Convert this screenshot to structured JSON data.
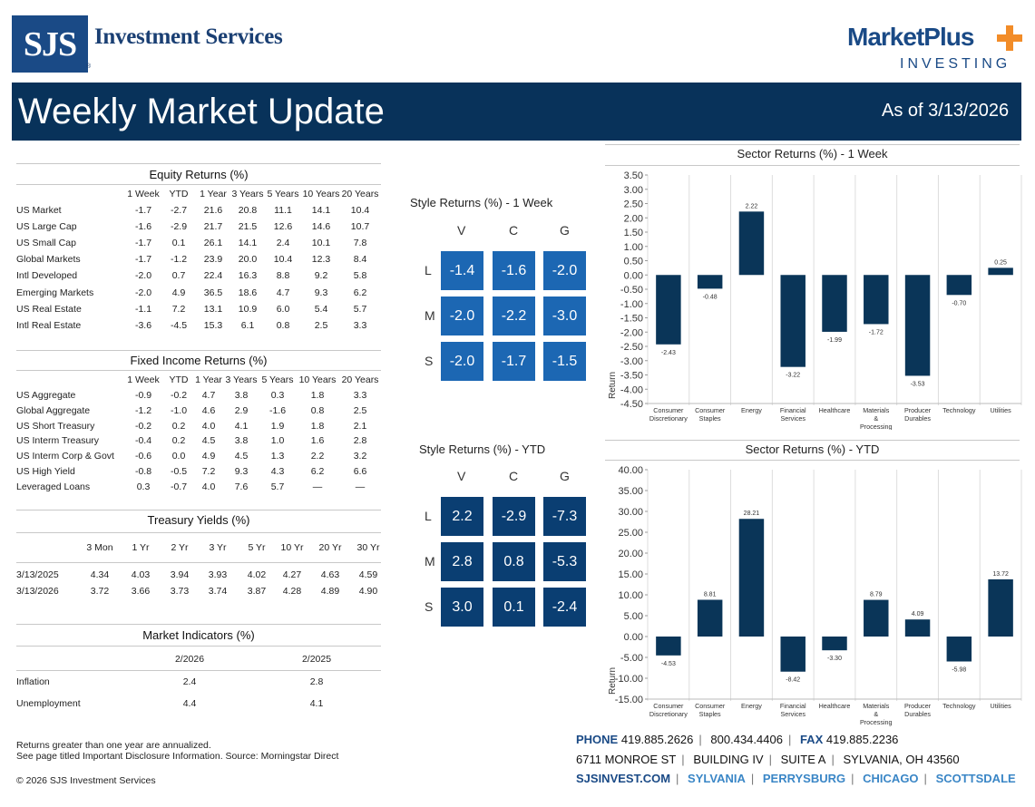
{
  "brand": {
    "logo_letters": "SJS",
    "name": "Investment Services",
    "reg": "®",
    "partner_name": "MarketPlus",
    "partner_sub": "INVESTING"
  },
  "banner": {
    "title": "Weekly Market Update",
    "date": "As of 3/13/2026"
  },
  "equity": {
    "title": "Equity Returns (%)",
    "headers": [
      "1 Week",
      "YTD",
      "1 Year",
      "3 Years",
      "5 Years",
      "10 Years",
      "20 Years"
    ],
    "rows": [
      [
        "US Market",
        "-1.7",
        "-2.7",
        "21.6",
        "20.8",
        "11.1",
        "14.1",
        "10.4"
      ],
      [
        "US Large Cap",
        "-1.6",
        "-2.9",
        "21.7",
        "21.5",
        "12.6",
        "14.6",
        "10.7"
      ],
      [
        "US Small Cap",
        "-1.7",
        "0.1",
        "26.1",
        "14.1",
        "2.4",
        "10.1",
        "7.8"
      ],
      [
        "Global Markets",
        "-1.7",
        "-1.2",
        "23.9",
        "20.0",
        "10.4",
        "12.3",
        "8.4"
      ],
      [
        "Intl Developed",
        "-2.0",
        "0.7",
        "22.4",
        "16.3",
        "8.8",
        "9.2",
        "5.8"
      ],
      [
        "Emerging Markets",
        "-2.0",
        "4.9",
        "36.5",
        "18.6",
        "4.7",
        "9.3",
        "6.2"
      ],
      [
        "US Real Estate",
        "-1.1",
        "7.2",
        "13.1",
        "10.9",
        "6.0",
        "5.4",
        "5.7"
      ],
      [
        "Intl Real Estate",
        "-3.6",
        "-4.5",
        "15.3",
        "6.1",
        "0.8",
        "2.5",
        "3.3"
      ]
    ]
  },
  "fixed": {
    "title": "Fixed Income Returns (%)",
    "headers": [
      "1 Week",
      "YTD",
      "1 Year",
      "3 Years",
      "5 Years",
      "10 Years",
      "20 Years"
    ],
    "rows": [
      [
        "US Aggregate",
        "-0.9",
        "-0.2",
        "4.7",
        "3.8",
        "0.3",
        "1.8",
        "3.3"
      ],
      [
        "Global Aggregate",
        "-1.2",
        "-1.0",
        "4.6",
        "2.9",
        "-1.6",
        "0.8",
        "2.5"
      ],
      [
        "US Short Treasury",
        "-0.2",
        "0.2",
        "4.0",
        "4.1",
        "1.9",
        "1.8",
        "2.1"
      ],
      [
        "US Interm Treasury",
        "-0.4",
        "0.2",
        "4.5",
        "3.8",
        "1.0",
        "1.6",
        "2.8"
      ],
      [
        "US Interm Corp & Govt",
        "-0.6",
        "0.0",
        "4.9",
        "4.5",
        "1.3",
        "2.2",
        "3.2"
      ],
      [
        "US High Yield",
        "-0.8",
        "-0.5",
        "7.2",
        "9.3",
        "4.3",
        "6.2",
        "6.6"
      ],
      [
        "Leveraged Loans",
        "0.3",
        "-0.7",
        "4.0",
        "7.6",
        "5.7",
        "—",
        "—"
      ]
    ]
  },
  "treasury": {
    "title": "Treasury Yields (%)",
    "headers": [
      "3 Mon",
      "1 Yr",
      "2 Yr",
      "3 Yr",
      "5 Yr",
      "10 Yr",
      "20 Yr",
      "30 Yr"
    ],
    "rows": [
      [
        "3/13/2025",
        "4.34",
        "4.03",
        "3.94",
        "3.93",
        "4.02",
        "4.27",
        "4.63",
        "4.59"
      ],
      [
        "3/13/2026",
        "3.72",
        "3.66",
        "3.73",
        "3.74",
        "3.87",
        "4.28",
        "4.89",
        "4.90"
      ]
    ]
  },
  "indicators": {
    "title": "Market Indicators (%)",
    "headers": [
      "2/2026",
      "2/2025"
    ],
    "rows": [
      [
        "Inflation",
        "2.4",
        "2.8"
      ],
      [
        "Unemployment",
        "4.4",
        "4.1"
      ]
    ]
  },
  "style_week": {
    "title": "Style Returns (%)  - 1 Week",
    "cols": [
      "V",
      "C",
      "G"
    ],
    "rows": [
      "L",
      "M",
      "S"
    ],
    "values": [
      [
        "-1.4",
        "-1.6",
        "-2.0"
      ],
      [
        "-2.0",
        "-2.2",
        "-3.0"
      ],
      [
        "-2.0",
        "-1.7",
        "-1.5"
      ]
    ]
  },
  "style_ytd": {
    "title": "Style Returns (%)  - YTD",
    "cols": [
      "V",
      "C",
      "G"
    ],
    "rows": [
      "L",
      "M",
      "S"
    ],
    "values": [
      [
        "2.2",
        "-2.9",
        "-7.3"
      ],
      [
        "2.8",
        "0.8",
        "-5.3"
      ],
      [
        "3.0",
        "0.1",
        "-2.4"
      ]
    ]
  },
  "chart_data": [
    {
      "type": "bar",
      "title": "Sector Returns (%)  - 1 Week",
      "ylabel": "Return",
      "ylim": [
        -4.5,
        3.5
      ],
      "yticks": [
        "3.50",
        "3.00",
        "2.50",
        "2.00",
        "1.50",
        "1.00",
        "0.50",
        "0.00",
        "-0.50",
        "-1.00",
        "-1.50",
        "-2.00",
        "-2.50",
        "-3.00",
        "-3.50",
        "-4.00",
        "-4.50"
      ],
      "categories": [
        "Consumer Discretionary",
        "Consumer Staples",
        "Energy",
        "Financial Services",
        "Healthcare",
        "Materials & Processing",
        "Producer Durables",
        "Technology",
        "Utilities"
      ],
      "values": [
        -2.43,
        -0.48,
        2.22,
        -3.22,
        -1.99,
        -1.72,
        -3.53,
        -0.7,
        0.25
      ],
      "labels": [
        "-2.43",
        "-0.48",
        "2.22",
        "-3.22",
        "-1.99",
        "-1.72",
        "-3.53",
        "-0.70",
        "0.25"
      ]
    },
    {
      "type": "bar",
      "title": "Sector Returns (%)  - YTD",
      "ylabel": "Return",
      "ylim": [
        -15,
        40
      ],
      "yticks": [
        "40.00",
        "35.00",
        "30.00",
        "25.00",
        "20.00",
        "15.00",
        "10.00",
        "5.00",
        "0.00",
        "-5.00",
        "-10.00",
        "-15.00"
      ],
      "categories": [
        "Consumer Discretionary",
        "Consumer Staples",
        "Energy",
        "Financial Services",
        "Healthcare",
        "Materials & Processing",
        "Producer Durables",
        "Technology",
        "Utilities"
      ],
      "values": [
        -4.53,
        8.81,
        28.21,
        -8.42,
        -3.3,
        8.79,
        4.09,
        -5.98,
        13.72
      ],
      "labels": [
        "-4.53",
        "8.81",
        "28.21",
        "-8.42",
        "-3.30",
        "8.79",
        "4.09",
        "-5.98",
        "13.72"
      ]
    }
  ],
  "footnotes": {
    "line1": "Returns greater than one year are annualized.",
    "line2": "See page titled Important Disclosure Information. Source: Morningstar Direct",
    "copyright": "© 2026 SJS Investment Services"
  },
  "contact": {
    "phone_label": "PHONE",
    "phone": "419.885.2626",
    "tollfree": "800.434.4406",
    "fax_label": "FAX",
    "fax": "419.885.2236",
    "address": [
      "6711 MONROE ST",
      "BUILDING IV",
      "SUITE A",
      "SYLVANIA, OH 43560"
    ],
    "web": "SJSINVEST.COM",
    "locations": [
      "SYLVANIA",
      "PERRYSBURG",
      "CHICAGO",
      "SCOTTSDALE"
    ]
  }
}
